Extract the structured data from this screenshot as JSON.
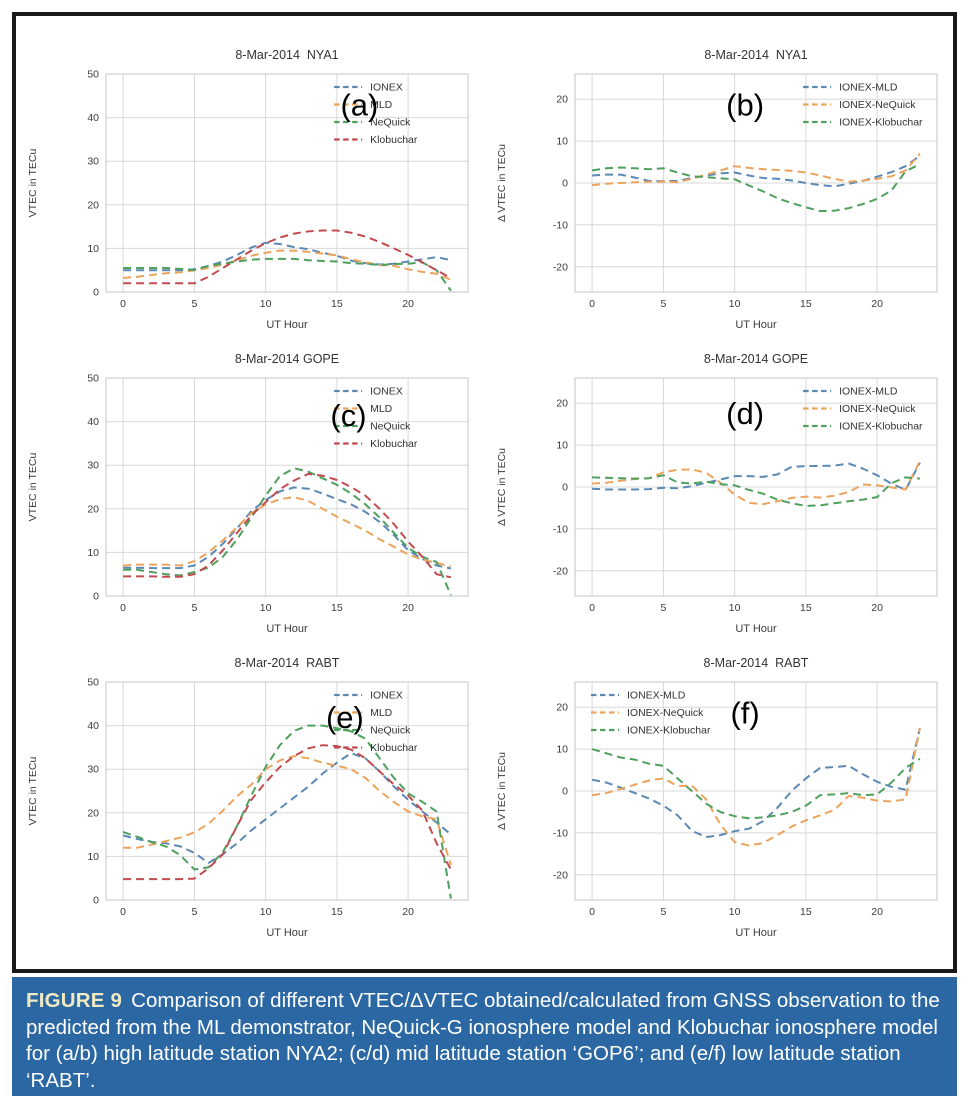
{
  "figure": {
    "frame_border_color": "#1a1a1a",
    "background": "#ffffff",
    "grid_color": "#d8d8d8",
    "spine_color": "#c4c4c4",
    "tick_label_color": "#3c3c3c"
  },
  "caption": {
    "label": "FIGURE 9",
    "text": "Comparison of different VTEC/ΔVTEC obtained/calculated from GNSS observation to the predicted from the ML demonstrator, NeQuick-G ionosphere model and Klobuchar ionosphere model for (a/b) high latitude station NYA2; (c/d) mid latitude station ‘GOP6’; and (e/f) low latitude station ‘RABT’.",
    "colors": {
      "background": "#2b67a3",
      "label": "#f1e9c2",
      "text": "#ffffff"
    }
  },
  "chart_data": [
    {
      "type": "line",
      "panel": "(a)",
      "title": "8-Mar-2014  NYA1",
      "xlabel": "UT Hour",
      "ylabel": "VTEC in TECu",
      "xlim": [
        -1.2,
        24.2
      ],
      "ylim": [
        0,
        50
      ],
      "xticks": [
        0,
        5,
        10,
        15,
        20
      ],
      "yticks": [
        0,
        10,
        20,
        30,
        40,
        50
      ],
      "grid": true,
      "legend": "upper-right",
      "panel_pos": [
        0.7,
        0.08
      ],
      "x": [
        0,
        1,
        2,
        3,
        4,
        5,
        6,
        7,
        8,
        9,
        10,
        11,
        12,
        13,
        14,
        15,
        16,
        17,
        18,
        19,
        20,
        21,
        22,
        23
      ],
      "series": [
        {
          "name": "IONEX",
          "color": "#5b89b4",
          "values": [
            5.0,
            5.0,
            5.0,
            5.0,
            5.0,
            5.2,
            6.0,
            7.0,
            8.5,
            10.2,
            11.3,
            11.0,
            10.3,
            9.8,
            9.0,
            8.3,
            7.2,
            6.6,
            6.3,
            6.5,
            7.0,
            7.5,
            8.0,
            7.3
          ]
        },
        {
          "name": "MLD",
          "color": "#eca35c",
          "values": [
            3.2,
            3.5,
            3.9,
            4.3,
            4.5,
            5.0,
            5.5,
            6.3,
            7.3,
            8.3,
            9.0,
            9.5,
            9.5,
            9.2,
            8.8,
            8.4,
            7.5,
            6.8,
            6.2,
            6.0,
            5.2,
            4.6,
            4.2,
            2.8
          ]
        },
        {
          "name": "NeQuick",
          "color": "#4fa05e",
          "values": [
            5.5,
            5.5,
            5.5,
            5.5,
            5.3,
            5.0,
            6.0,
            6.5,
            7.0,
            7.4,
            7.6,
            7.6,
            7.6,
            7.3,
            7.1,
            7.0,
            6.6,
            6.5,
            6.2,
            6.4,
            6.5,
            6.8,
            5.0,
            0.3
          ]
        },
        {
          "name": "Klobuchar",
          "color": "#c14b4f",
          "values": [
            2.0,
            2.0,
            2.0,
            2.0,
            2.0,
            2.0,
            3.5,
            5.5,
            7.5,
            9.5,
            11.2,
            12.5,
            13.4,
            13.9,
            14.1,
            14.1,
            13.6,
            12.7,
            11.5,
            10.0,
            8.5,
            6.8,
            5.0,
            3.2
          ]
        }
      ]
    },
    {
      "type": "line",
      "panel": "(b)",
      "title": "8-Mar-2014  NYA1",
      "xlabel": "UT Hour",
      "ylabel": "Δ VTEC in TECu",
      "xlim": [
        -1.2,
        24.2
      ],
      "ylim": [
        -26,
        26
      ],
      "xticks": [
        0,
        5,
        10,
        15,
        20
      ],
      "yticks": [
        -20,
        -10,
        0,
        10,
        20
      ],
      "grid": true,
      "legend": "upper-right",
      "panel_pos": [
        0.47,
        0.08
      ],
      "x": [
        0,
        1,
        2,
        3,
        4,
        5,
        6,
        7,
        8,
        9,
        10,
        11,
        12,
        13,
        14,
        15,
        16,
        17,
        18,
        19,
        20,
        21,
        22,
        23
      ],
      "series": [
        {
          "name": "IONEX-MLD",
          "color": "#5b89b4",
          "values": [
            1.8,
            2.0,
            2.0,
            1.3,
            0.5,
            0.4,
            0.5,
            1.2,
            1.8,
            2.3,
            2.5,
            1.8,
            1.2,
            1.0,
            0.6,
            0.0,
            -0.5,
            -0.8,
            -0.2,
            0.5,
            1.5,
            2.6,
            4.0,
            6.5
          ]
        },
        {
          "name": "IONEX-NeQuick",
          "color": "#eca35c",
          "values": [
            -0.5,
            -0.2,
            0.0,
            0.2,
            0.3,
            0.3,
            0.2,
            1.0,
            2.0,
            3.0,
            4.0,
            3.6,
            3.3,
            3.1,
            2.9,
            2.5,
            1.8,
            1.0,
            0.3,
            0.6,
            1.0,
            1.6,
            3.0,
            7.0
          ]
        },
        {
          "name": "IONEX-Klobuchar",
          "color": "#4fa05e",
          "values": [
            3.0,
            3.5,
            3.7,
            3.5,
            3.3,
            3.5,
            2.5,
            1.6,
            1.4,
            1.1,
            0.9,
            -0.6,
            -2.0,
            -3.6,
            -4.8,
            -5.8,
            -6.7,
            -6.6,
            -6.0,
            -5.0,
            -3.8,
            -1.8,
            2.8,
            4.5
          ]
        }
      ]
    },
    {
      "type": "line",
      "panel": "(c)",
      "title": "8-Mar-2014 GOPE",
      "xlabel": "UT Hour",
      "ylabel": "VTEC in TECu",
      "xlim": [
        -1.2,
        24.2
      ],
      "ylim": [
        0,
        50
      ],
      "xticks": [
        0,
        5,
        10,
        15,
        20
      ],
      "yticks": [
        0,
        10,
        20,
        30,
        40,
        50
      ],
      "grid": true,
      "legend": "upper-right",
      "panel_pos": [
        0.67,
        0.11
      ],
      "x": [
        0,
        1,
        2,
        3,
        4,
        5,
        6,
        7,
        8,
        9,
        10,
        11,
        12,
        13,
        14,
        15,
        16,
        17,
        18,
        19,
        20,
        21,
        22,
        23
      ],
      "series": [
        {
          "name": "IONEX",
          "color": "#5b89b4",
          "values": [
            6.5,
            6.5,
            6.4,
            6.4,
            6.4,
            7.0,
            9.0,
            12.0,
            15.5,
            19.5,
            22.0,
            24.0,
            24.9,
            24.6,
            23.5,
            22.2,
            21.0,
            19.3,
            17.0,
            14.0,
            10.5,
            8.5,
            7.0,
            6.3
          ]
        },
        {
          "name": "MLD",
          "color": "#eca35c",
          "values": [
            7.0,
            7.2,
            7.2,
            7.2,
            7.0,
            8.0,
            10.0,
            12.8,
            15.8,
            19.0,
            21.0,
            22.2,
            22.7,
            21.8,
            20.0,
            18.2,
            16.6,
            15.0,
            13.0,
            11.3,
            9.5,
            8.4,
            7.6,
            6.8
          ]
        },
        {
          "name": "NeQuick",
          "color": "#4fa05e",
          "values": [
            6.0,
            6.0,
            5.5,
            5.0,
            4.7,
            5.5,
            6.5,
            9.0,
            13.0,
            18.0,
            23.0,
            27.5,
            29.3,
            28.5,
            27.0,
            25.5,
            23.5,
            21.0,
            18.0,
            14.5,
            11.0,
            9.0,
            7.8,
            0.2
          ]
        },
        {
          "name": "Klobuchar",
          "color": "#c14b4f",
          "values": [
            4.5,
            4.5,
            4.5,
            4.4,
            4.4,
            5.0,
            7.0,
            10.5,
            14.5,
            18.5,
            21.5,
            24.5,
            26.5,
            28.0,
            27.6,
            26.6,
            25.0,
            23.0,
            20.0,
            16.5,
            12.5,
            9.0,
            5.0,
            4.3
          ]
        }
      ]
    },
    {
      "type": "line",
      "panel": "(d)",
      "title": "8-Mar-2014 GOPE",
      "xlabel": "UT Hour",
      "ylabel": "Δ VTEC in TECu",
      "xlim": [
        -1.2,
        24.2
      ],
      "ylim": [
        -26,
        26
      ],
      "xticks": [
        0,
        5,
        10,
        15,
        20
      ],
      "yticks": [
        -20,
        -10,
        0,
        10,
        20
      ],
      "grid": true,
      "legend": "upper-right",
      "panel_pos": [
        0.47,
        0.1
      ],
      "x": [
        0,
        1,
        2,
        3,
        4,
        5,
        6,
        7,
        8,
        9,
        10,
        11,
        12,
        13,
        14,
        15,
        16,
        17,
        18,
        19,
        20,
        21,
        22,
        23
      ],
      "series": [
        {
          "name": "IONEX-MLD",
          "color": "#5b89b4",
          "values": [
            -0.4,
            -0.6,
            -0.6,
            -0.6,
            -0.5,
            -0.2,
            -0.3,
            0.2,
            1.0,
            1.8,
            2.6,
            2.6,
            2.4,
            3.0,
            4.8,
            5.0,
            5.0,
            5.1,
            5.6,
            4.4,
            2.8,
            0.8,
            -0.7,
            5.8
          ]
        },
        {
          "name": "IONEX-NeQuick",
          "color": "#eca35c",
          "values": [
            0.8,
            1.0,
            1.5,
            1.9,
            2.1,
            3.5,
            4.1,
            4.2,
            3.4,
            1.0,
            -1.8,
            -3.8,
            -4.1,
            -3.4,
            -2.6,
            -2.3,
            -2.5,
            -2.1,
            -1.2,
            0.6,
            0.4,
            -0.1,
            -0.6,
            6.2
          ]
        },
        {
          "name": "IONEX-Klobuchar",
          "color": "#4fa05e",
          "values": [
            2.3,
            2.2,
            2.1,
            2.0,
            2.1,
            2.8,
            1.1,
            0.8,
            1.3,
            0.7,
            0.4,
            -0.7,
            -1.6,
            -3.0,
            -3.9,
            -4.5,
            -4.4,
            -3.9,
            -3.4,
            -3.0,
            -2.4,
            0.9,
            2.3,
            2.0
          ]
        }
      ]
    },
    {
      "type": "line",
      "panel": "(e)",
      "title": "8-Mar-2014  RABT",
      "xlabel": "UT Hour",
      "ylabel": "VTEC in TECu",
      "xlim": [
        -1.2,
        24.2
      ],
      "ylim": [
        0,
        50
      ],
      "xticks": [
        0,
        5,
        10,
        15,
        20
      ],
      "yticks": [
        0,
        10,
        20,
        30,
        40,
        50
      ],
      "grid": true,
      "legend": "upper-right",
      "panel_pos": [
        0.66,
        0.1
      ],
      "x": [
        0,
        1,
        2,
        3,
        4,
        5,
        6,
        7,
        8,
        9,
        10,
        11,
        12,
        13,
        14,
        15,
        16,
        17,
        18,
        19,
        20,
        21,
        22,
        23
      ],
      "series": [
        {
          "name": "IONEX",
          "color": "#5b89b4",
          "values": [
            14.8,
            14.0,
            13.3,
            13.0,
            12.3,
            10.8,
            8.5,
            10.5,
            13.0,
            16.0,
            18.5,
            21.0,
            23.5,
            26.0,
            29.0,
            31.5,
            33.7,
            32.5,
            29.5,
            26.0,
            23.0,
            20.3,
            17.8,
            15.0
          ]
        },
        {
          "name": "MLD",
          "color": "#eca35c",
          "values": [
            12.0,
            12.0,
            12.7,
            13.5,
            14.3,
            15.5,
            17.5,
            20.5,
            23.8,
            26.5,
            30.0,
            32.0,
            33.0,
            32.5,
            31.5,
            30.8,
            30.0,
            28.0,
            25.0,
            22.5,
            20.3,
            19.2,
            18.5,
            8.0
          ]
        },
        {
          "name": "NeQuick",
          "color": "#4fa05e",
          "values": [
            15.6,
            14.5,
            13.3,
            12.3,
            10.3,
            7.0,
            7.5,
            11.0,
            17.0,
            24.0,
            30.5,
            35.5,
            38.8,
            40.0,
            40.0,
            39.4,
            38.7,
            37.0,
            32.5,
            28.0,
            24.5,
            22.5,
            20.3,
            0.3
          ]
        },
        {
          "name": "Klobuchar",
          "color": "#c14b4f",
          "values": [
            4.8,
            4.8,
            4.8,
            4.8,
            4.8,
            4.9,
            7.3,
            10.5,
            17.0,
            23.0,
            27.0,
            30.5,
            33.0,
            34.8,
            35.5,
            35.3,
            34.5,
            32.5,
            29.5,
            26.5,
            24.0,
            20.5,
            13.0,
            7.0
          ]
        }
      ]
    },
    {
      "type": "line",
      "panel": "(f)",
      "title": "8-Mar-2014  RABT",
      "xlabel": "UT Hour",
      "ylabel": "Δ VTEC in TECu",
      "xlim": [
        -1.2,
        24.2
      ],
      "ylim": [
        -26,
        26
      ],
      "xticks": [
        0,
        5,
        10,
        15,
        20
      ],
      "yticks": [
        -20,
        -10,
        0,
        10,
        20
      ],
      "grid": true,
      "legend": "upper-left",
      "panel_pos": [
        0.47,
        0.08
      ],
      "x": [
        0,
        1,
        2,
        3,
        4,
        5,
        6,
        7,
        8,
        9,
        10,
        11,
        12,
        13,
        14,
        15,
        16,
        17,
        18,
        19,
        20,
        21,
        22,
        23
      ],
      "series": [
        {
          "name": "IONEX-MLD",
          "color": "#5b89b4",
          "values": [
            2.7,
            2.0,
            0.8,
            -0.5,
            -1.8,
            -3.5,
            -5.8,
            -9.5,
            -11.0,
            -10.5,
            -9.6,
            -9.0,
            -7.2,
            -4.0,
            0.0,
            3.0,
            5.5,
            5.7,
            6.0,
            4.0,
            2.2,
            1.0,
            0.3,
            15.0
          ]
        },
        {
          "name": "IONEX-NeQuick",
          "color": "#eca35c",
          "values": [
            -1.0,
            -0.5,
            0.5,
            1.5,
            2.5,
            3.0,
            1.2,
            1.3,
            -2.0,
            -8.0,
            -12.2,
            -13.0,
            -12.4,
            -10.5,
            -8.5,
            -7.0,
            -5.8,
            -4.5,
            -1.2,
            -1.6,
            -2.3,
            -2.5,
            -2.0,
            15.0
          ]
        },
        {
          "name": "IONEX-Klobuchar",
          "color": "#4fa05e",
          "values": [
            10.0,
            9.0,
            8.0,
            7.5,
            6.5,
            6.0,
            3.0,
            0.0,
            -3.0,
            -5.0,
            -6.0,
            -6.5,
            -6.3,
            -5.8,
            -5.0,
            -3.5,
            -1.0,
            -0.8,
            -0.5,
            -1.0,
            -0.8,
            2.0,
            5.5,
            7.7
          ]
        }
      ]
    }
  ]
}
